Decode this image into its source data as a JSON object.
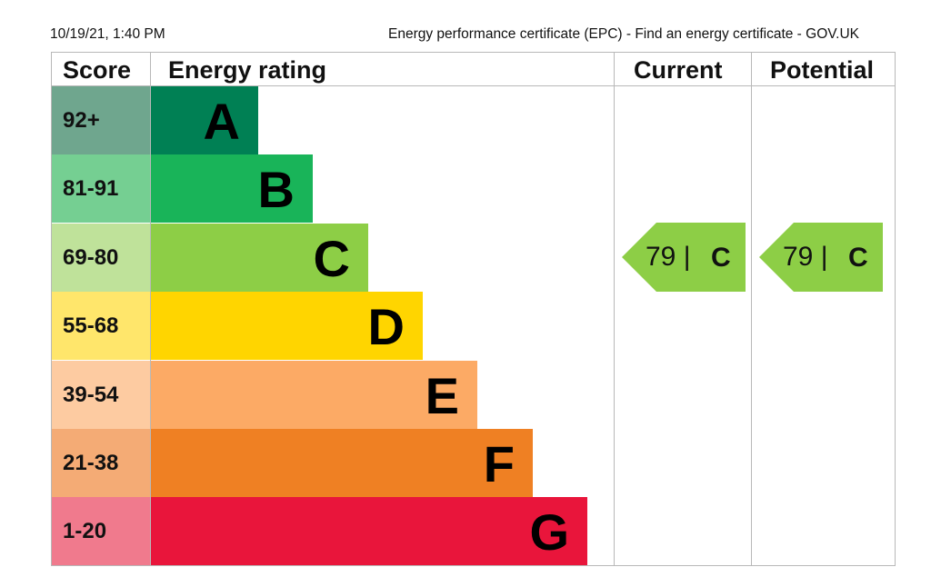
{
  "header": {
    "date": "10/19/21, 1:40 PM",
    "title": "Energy performance certificate (EPC) - Find an energy certificate - GOV.UK"
  },
  "columns": {
    "score": "Score",
    "rating": "Energy rating",
    "current": "Current",
    "potential": "Potential"
  },
  "bands": [
    {
      "score": "92+",
      "letter": "A",
      "color": "#008054",
      "score_bg": "#6fa68e"
    },
    {
      "score": "81-91",
      "letter": "B",
      "color": "#19b459",
      "score_bg": "#75cf92"
    },
    {
      "score": "69-80",
      "letter": "C",
      "color": "#8dce46",
      "score_bg": "#bfe29a"
    },
    {
      "score": "55-68",
      "letter": "D",
      "color": "#ffd500",
      "score_bg": "#ffe66b"
    },
    {
      "score": "39-54",
      "letter": "E",
      "color": "#fcaa65",
      "score_bg": "#fdcba1"
    },
    {
      "score": "21-38",
      "letter": "F",
      "color": "#ef8023",
      "score_bg": "#f4ab75"
    },
    {
      "score": "1-20",
      "letter": "G",
      "color": "#e9153b",
      "score_bg": "#f07a8d"
    }
  ],
  "current": {
    "score": "79 |",
    "letter": "C",
    "color": "#8dce46"
  },
  "potential": {
    "score": "79 |",
    "letter": "C",
    "color": "#8dce46"
  }
}
